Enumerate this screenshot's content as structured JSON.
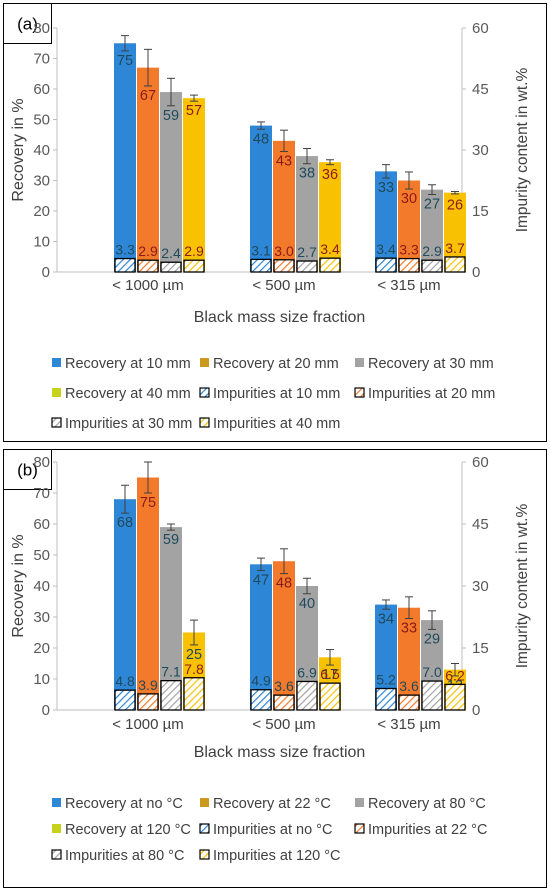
{
  "colors": {
    "blue": "#2E86D6",
    "orange": "#F37A2A",
    "gray": "#A3A3A3",
    "yellow": "#F8C203",
    "legend_orange": "#C99A1E",
    "legend_yellow": "#C8D21A",
    "label_dark": "#1F4A5C",
    "label_red": "#8B1A1A",
    "axis_text": "#595959",
    "grid": "#D9D9D9"
  },
  "chart_data": [
    {
      "type": "bar",
      "panel_label": "(a)",
      "categories": [
        "< 1000 µm",
        "< 500 µm",
        "< 315 µm"
      ],
      "xlabel": "Black mass size fraction",
      "ylabel": "Recovery in %",
      "y2label": "Impurity content in wt.%",
      "ylim": [
        0,
        80
      ],
      "yticks": [
        0,
        10,
        20,
        30,
        40,
        50,
        60,
        70,
        80
      ],
      "y2lim": [
        0,
        60
      ],
      "y2ticks": [
        0,
        15,
        30,
        45,
        60
      ],
      "grid": false,
      "legend_position": "bottom",
      "series": [
        {
          "name": "Recovery at 10 mm",
          "values": [
            75,
            48,
            33
          ],
          "errors": [
            2.5,
            1.2,
            2.2
          ],
          "labels": [
            "75",
            "48",
            "33"
          ],
          "color_key": "blue",
          "legend_color_key": "blue",
          "label_color_key": "label_dark"
        },
        {
          "name": "Recovery at 20 mm",
          "values": [
            67,
            43,
            30
          ],
          "errors": [
            6,
            3.5,
            2.8
          ],
          "labels": [
            "67",
            "43",
            "30"
          ],
          "color_key": "orange",
          "legend_color_key": "legend_orange",
          "label_color_key": "label_red"
        },
        {
          "name": "Recovery at 30 mm",
          "values": [
            59,
            38,
            27
          ],
          "errors": [
            4.5,
            2.5,
            1.6
          ],
          "labels": [
            "59",
            "38",
            "27"
          ],
          "color_key": "gray",
          "legend_color_key": "gray",
          "label_color_key": "label_dark"
        },
        {
          "name": "Recovery at 40 mm",
          "values": [
            57,
            36,
            26
          ],
          "errors": [
            1,
            0.8,
            0.4
          ],
          "labels": [
            "57",
            "36",
            "26"
          ],
          "color_key": "yellow",
          "legend_color_key": "legend_yellow",
          "label_color_key": "label_red"
        }
      ],
      "impurity_series": [
        {
          "name": "Impurities at 10 mm",
          "values": [
            3.3,
            3.1,
            3.4
          ],
          "labels": [
            "3.3",
            "3.1",
            "3.4"
          ],
          "color_key": "blue",
          "legend_color_key": "blue",
          "label_color_key": "label_dark"
        },
        {
          "name": "Impurities at 20 mm",
          "values": [
            2.9,
            3.0,
            3.3
          ],
          "labels": [
            "2.9",
            "3.0",
            "3.3"
          ],
          "color_key": "orange",
          "legend_color_key": "legend_orange",
          "label_color_key": "label_red"
        },
        {
          "name": "Impurities at 30 mm",
          "values": [
            2.4,
            2.7,
            2.9
          ],
          "labels": [
            "2.4",
            "2.7",
            "2.9"
          ],
          "color_key": "gray",
          "legend_color_key": "axis_text",
          "label_color_key": "label_dark"
        },
        {
          "name": "Impurities at 40 mm",
          "values": [
            2.9,
            3.4,
            3.7
          ],
          "labels": [
            "2.9",
            "3.4",
            "3.7"
          ],
          "color_key": "yellow",
          "legend_color_key": "legend_yellow",
          "label_color_key": "label_red"
        }
      ]
    },
    {
      "type": "bar",
      "panel_label": "(b)",
      "categories": [
        "< 1000 µm",
        "< 500 µm",
        "< 315 µm"
      ],
      "xlabel": "Black mass size fraction",
      "ylabel": "Recovery in %",
      "y2label": "Impurity content in wt.%",
      "ylim": [
        0,
        80
      ],
      "yticks": [
        0,
        10,
        20,
        30,
        40,
        50,
        60,
        70,
        80
      ],
      "y2lim": [
        0,
        60
      ],
      "y2ticks": [
        0,
        15,
        30,
        45,
        60
      ],
      "grid": false,
      "legend_position": "bottom",
      "series": [
        {
          "name": "Recovery at no °C",
          "values": [
            68,
            47,
            34
          ],
          "errors": [
            4.5,
            2,
            1.5
          ],
          "labels": [
            "68",
            "47",
            "34"
          ],
          "color_key": "blue",
          "legend_color_key": "blue",
          "label_color_key": "label_dark"
        },
        {
          "name": "Recovery at 22 °C",
          "values": [
            75,
            48,
            33
          ],
          "errors": [
            5,
            4,
            3.5
          ],
          "labels": [
            "75",
            "48",
            "33"
          ],
          "color_key": "orange",
          "legend_color_key": "legend_orange",
          "label_color_key": "label_red"
        },
        {
          "name": "Recovery at 80 °C",
          "values": [
            59,
            40,
            29
          ],
          "errors": [
            1,
            2.5,
            3
          ],
          "labels": [
            "59",
            "40",
            "29"
          ],
          "color_key": "gray",
          "legend_color_key": "gray",
          "label_color_key": "label_dark"
        },
        {
          "name": "Recovery at 120 °C",
          "values": [
            25,
            17,
            13
          ],
          "errors": [
            4,
            2.5,
            2
          ],
          "labels": [
            "25",
            "17",
            "13"
          ],
          "color_key": "yellow",
          "legend_color_key": "legend_yellow",
          "label_color_key": "label_dark"
        }
      ],
      "impurity_series": [
        {
          "name": "Impurities at no °C",
          "values": [
            4.8,
            4.9,
            5.2
          ],
          "labels": [
            "4.8",
            "4.9",
            "5.2"
          ],
          "color_key": "blue",
          "legend_color_key": "blue",
          "label_color_key": "label_dark"
        },
        {
          "name": "Impurities at 22 °C",
          "values": [
            3.9,
            3.6,
            3.6
          ],
          "labels": [
            "3.9",
            "3.6",
            "3.6"
          ],
          "color_key": "orange",
          "legend_color_key": "legend_orange",
          "label_color_key": "label_dark"
        },
        {
          "name": "Impurities at 80 °C",
          "values": [
            7.1,
            6.9,
            7.0
          ],
          "labels": [
            "7.1",
            "6.9",
            "7.0"
          ],
          "color_key": "gray",
          "legend_color_key": "axis_text",
          "label_color_key": "label_dark"
        },
        {
          "name": "Impurities at 120 °C",
          "values": [
            7.8,
            6.5,
            6.2
          ],
          "labels": [
            "7.8",
            "6.5",
            "6.2"
          ],
          "color_key": "yellow",
          "legend_color_key": "legend_yellow",
          "label_color_key": "label_red"
        }
      ]
    }
  ]
}
